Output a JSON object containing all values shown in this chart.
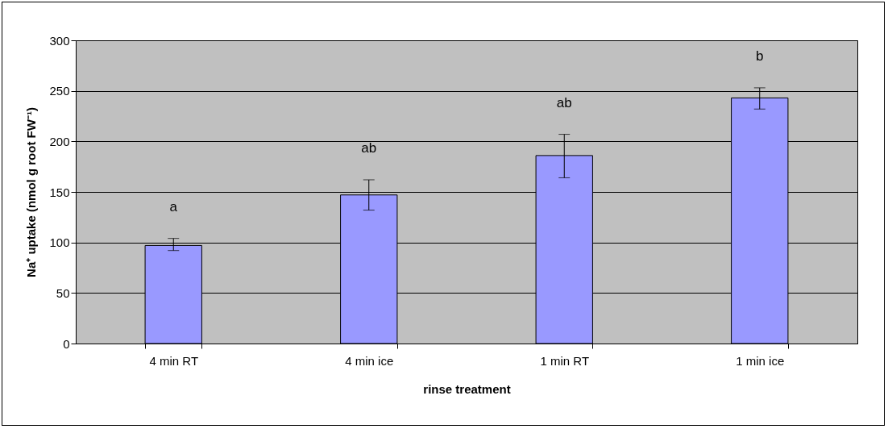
{
  "chart_data": {
    "type": "bar",
    "xlabel": "rinse treatment",
    "ylabel": "Na⁺ uptake (nmol g root FW⁻¹)",
    "categories": [
      "4 min RT",
      "4 min ice",
      "1 min RT",
      "1 min ice"
    ],
    "values": [
      97,
      147,
      186,
      243
    ],
    "errors": [
      [
        92,
        104
      ],
      [
        132,
        162
      ],
      [
        164,
        207
      ],
      [
        232,
        253
      ]
    ],
    "color": "#9999ff",
    "ylim": [
      0,
      300
    ],
    "yticks": [
      0,
      50,
      100,
      150,
      200,
      250,
      300
    ],
    "grid": "y",
    "annotations": [
      "a",
      "ab",
      "ab",
      "b"
    ]
  }
}
